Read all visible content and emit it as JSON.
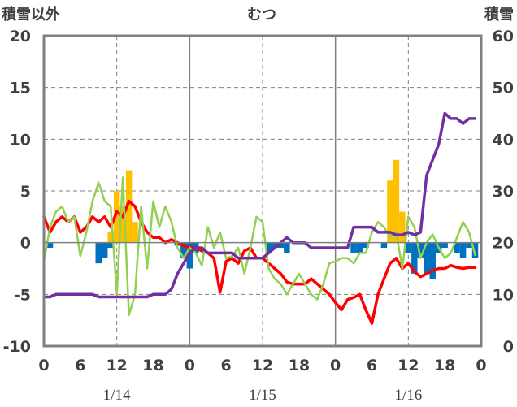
{
  "chart_data": {
    "type": "bar+line",
    "title": "むつ",
    "left_axis_label": "積雪以外",
    "right_axis_label": "積雪",
    "left_axis": {
      "min": -10,
      "max": 20,
      "ticks": [
        20,
        15,
        10,
        5,
        0,
        -5,
        -10
      ]
    },
    "right_axis": {
      "min": 0,
      "max": 60,
      "ticks": [
        60,
        50,
        40,
        30,
        20,
        10,
        0
      ]
    },
    "x_axis": {
      "hour_min": 0,
      "hour_max": 72,
      "tick_hours": [
        0,
        6,
        12,
        18,
        24,
        30,
        36,
        42,
        48,
        54,
        60,
        66,
        72
      ],
      "tick_labels": [
        "0",
        "6",
        "12",
        "18",
        "0",
        "6",
        "12",
        "18",
        "0",
        "6",
        "12",
        "18",
        "0"
      ],
      "day_boundaries": [
        24,
        48
      ],
      "noon_hours": [
        12,
        36,
        60
      ],
      "date_labels": [
        {
          "label": "1/14",
          "hour": 12
        },
        {
          "label": "1/15",
          "hour": 36
        },
        {
          "label": "1/16",
          "hour": 60
        }
      ]
    },
    "grid": true,
    "colors": {
      "temperature": "#ff0000",
      "snowfall": "#ffc000",
      "snow_depth_change": "#0070c0",
      "wind": "#92d050",
      "snow_depth": "#7030a0",
      "frame": "#808080",
      "zero_line": "#808080",
      "grid": "#808080"
    },
    "series": [
      {
        "key": "snow_depth_change",
        "type": "bar",
        "axis": "left",
        "x": [
          1,
          9,
          10,
          11,
          12,
          13,
          14,
          15,
          22,
          23,
          24,
          25,
          26,
          27,
          28,
          29,
          30,
          31,
          32,
          33,
          34,
          35,
          36,
          37,
          38,
          39,
          40,
          41,
          42,
          43,
          44,
          45,
          46,
          47,
          48,
          49,
          50,
          51,
          52,
          53,
          54,
          55,
          56,
          57,
          58,
          59,
          60,
          61,
          62,
          63,
          64,
          65,
          66,
          67,
          68,
          69,
          70,
          71
        ],
        "values": [
          -0.5,
          -2.0,
          -1.5,
          -0.5,
          0,
          0,
          0,
          0,
          -0.3,
          -1.5,
          -2.5,
          -1.0,
          0,
          0,
          0,
          0,
          0,
          0,
          0,
          0,
          0,
          0,
          0,
          -1.0,
          -0.5,
          -0.5,
          -1.0,
          0,
          0,
          0,
          0,
          0,
          0,
          0,
          0,
          0,
          0,
          -1.0,
          -1.0,
          -0.5,
          0,
          0,
          -0.5,
          0,
          0,
          0,
          -1.0,
          -3.0,
          -1.5,
          -3.0,
          -3.5,
          -1.0,
          -0.5,
          0,
          -1.0,
          -1.5,
          -0.5,
          -1.5
        ]
      },
      {
        "key": "snowfall",
        "type": "bar",
        "axis": "left",
        "x": [
          11,
          12,
          13,
          14,
          15,
          57,
          58,
          59
        ],
        "values": [
          1.0,
          5.0,
          3.5,
          7.0,
          2.0,
          6.0,
          8.0,
          3.0
        ]
      },
      {
        "key": "temperature",
        "type": "line",
        "axis": "left",
        "x": [
          0,
          1,
          2,
          3,
          4,
          5,
          6,
          7,
          8,
          9,
          10,
          11,
          12,
          13,
          14,
          15,
          16,
          17,
          18,
          19,
          20,
          21,
          22,
          23,
          24,
          25,
          26,
          27,
          28,
          29,
          30,
          31,
          32,
          33,
          34,
          35,
          36,
          37,
          38,
          39,
          40,
          41,
          42,
          43,
          44,
          45,
          46,
          47,
          48,
          49,
          50,
          51,
          52,
          53,
          54,
          55,
          56,
          57,
          58,
          59,
          60,
          61,
          62,
          63,
          64,
          65,
          66,
          67,
          68,
          69,
          70,
          71
        ],
        "values": [
          2.5,
          1.0,
          2.0,
          2.5,
          2.0,
          2.5,
          1.0,
          1.5,
          2.5,
          2.0,
          2.5,
          1.5,
          3.0,
          2.5,
          4.0,
          3.5,
          2.0,
          1.0,
          0.5,
          0.5,
          0.0,
          0.3,
          0.0,
          -0.3,
          -0.5,
          -0.5,
          -0.8,
          -1.0,
          -1.5,
          -4.8,
          -1.8,
          -1.5,
          -2.0,
          -0.8,
          -0.5,
          -1.5,
          -1.5,
          -2.0,
          -2.5,
          -3.0,
          -3.8,
          -4.0,
          -4.0,
          -4.0,
          -3.5,
          -4.0,
          -4.5,
          -5.0,
          -5.8,
          -6.5,
          -5.5,
          -5.3,
          -5.0,
          -6.5,
          -7.8,
          -5.0,
          -3.5,
          -2.0,
          -1.5,
          -2.5,
          -2.0,
          -2.8,
          -3.3,
          -3.0,
          -2.7,
          -2.5,
          -2.5,
          -2.2,
          -2.4,
          -2.5,
          -2.4,
          -2.4
        ]
      },
      {
        "key": "wind",
        "type": "line",
        "axis": "left",
        "x": [
          0,
          1,
          2,
          3,
          4,
          5,
          6,
          7,
          8,
          9,
          10,
          11,
          12,
          13,
          14,
          15,
          16,
          17,
          18,
          19,
          20,
          21,
          22,
          23,
          24,
          25,
          26,
          27,
          28,
          29,
          30,
          31,
          32,
          33,
          34,
          35,
          36,
          37,
          38,
          39,
          40,
          41,
          42,
          43,
          44,
          45,
          46,
          47,
          48,
          49,
          50,
          51,
          52,
          53,
          54,
          55,
          56,
          57,
          58,
          59,
          60,
          61,
          62,
          63,
          64,
          65,
          66,
          67,
          68,
          69,
          70,
          71
        ],
        "values": [
          -1.8,
          1.5,
          3.0,
          3.5,
          2.0,
          2.5,
          -1.3,
          1.0,
          4.0,
          5.8,
          4.0,
          3.5,
          -5.0,
          6.3,
          -7.0,
          -5.0,
          3.5,
          -2.5,
          4.0,
          1.5,
          3.5,
          2.0,
          -0.5,
          -1.5,
          -0.5,
          -1.0,
          -2.2,
          1.5,
          -0.5,
          1.0,
          -1.5,
          -1.3,
          -0.5,
          -3.0,
          -0.5,
          2.5,
          2.0,
          -2.5,
          -3.5,
          -4.0,
          -5.0,
          -4.0,
          -3.0,
          -4.0,
          -5.0,
          -5.5,
          -4.0,
          -2.0,
          -1.8,
          -1.5,
          -1.5,
          -2.0,
          -1.0,
          -1.0,
          1.0,
          2.0,
          1.5,
          0.5,
          1.0,
          -2.5,
          2.5,
          1.5,
          -1.5,
          0.0,
          0.8,
          -0.5,
          -1.5,
          -1.0,
          0.5,
          2.0,
          1.0,
          -1.2
        ]
      },
      {
        "key": "snow_depth",
        "type": "line",
        "axis": "right",
        "x": [
          0,
          1,
          2,
          3,
          4,
          5,
          6,
          7,
          8,
          9,
          10,
          11,
          12,
          13,
          14,
          15,
          16,
          17,
          18,
          19,
          20,
          21,
          22,
          23,
          24,
          25,
          26,
          27,
          28,
          29,
          30,
          31,
          32,
          33,
          34,
          35,
          36,
          37,
          38,
          39,
          40,
          41,
          42,
          43,
          44,
          45,
          46,
          47,
          48,
          49,
          50,
          51,
          52,
          53,
          54,
          55,
          56,
          57,
          58,
          59,
          60,
          61,
          62,
          63,
          64,
          65,
          66,
          67,
          68,
          69,
          70,
          71
        ],
        "values": [
          9.5,
          9.5,
          10,
          10,
          10,
          10,
          10,
          10,
          10,
          9.5,
          9.5,
          9.5,
          9.5,
          9.5,
          9.5,
          9.5,
          9.5,
          9.5,
          10,
          10,
          10,
          11,
          14,
          16,
          18,
          19,
          19,
          18,
          18,
          18,
          18,
          18,
          17,
          17,
          17,
          17,
          17,
          18,
          19,
          20,
          21,
          20,
          20,
          20,
          19,
          19,
          19,
          19,
          19,
          19,
          19,
          23,
          23,
          23,
          23,
          22,
          22,
          22,
          21.5,
          21.5,
          22,
          21.5,
          22,
          33,
          36,
          39,
          45,
          44,
          44,
          43,
          44,
          44
        ]
      }
    ]
  }
}
